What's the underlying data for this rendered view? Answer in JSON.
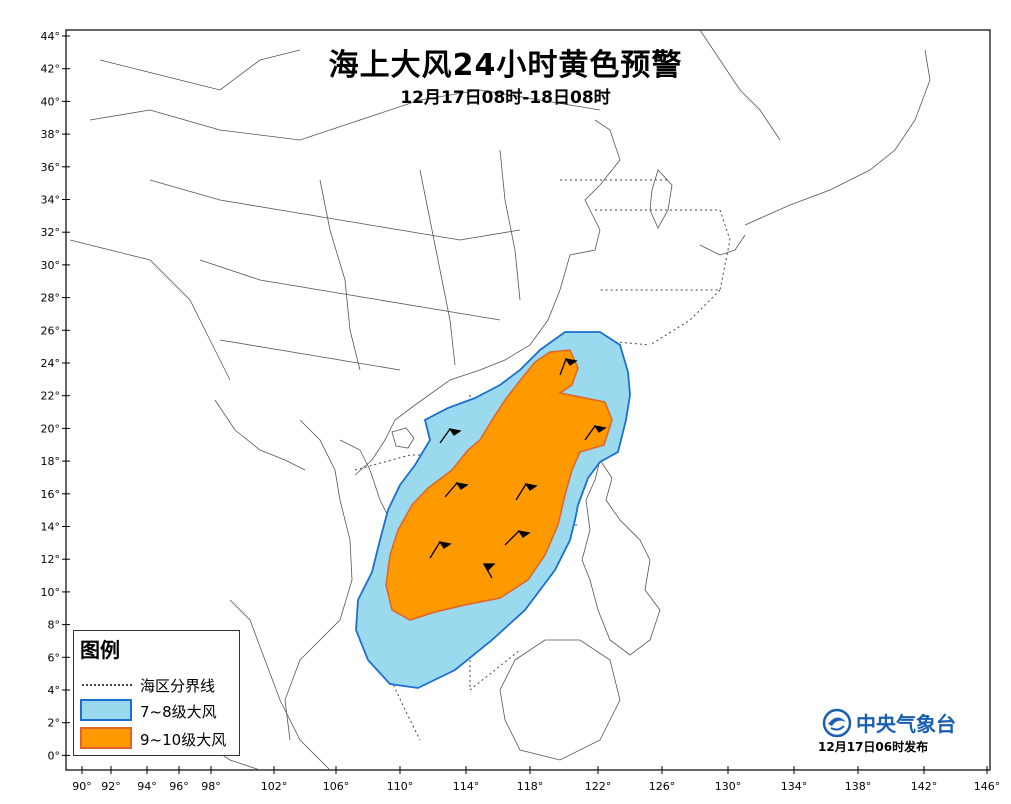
{
  "title": "海上大风24小时黄色预警",
  "subtitle": "12月17日08时-18日08时",
  "map": {
    "lon_range": [
      89,
      146
    ],
    "lat_range": [
      -1,
      44
    ],
    "lat_ticks": [
      "44°",
      "42°",
      "40°",
      "38°",
      "36°",
      "34°",
      "32°",
      "30°",
      "28°",
      "26°",
      "24°",
      "22°",
      "20°",
      "18°",
      "16°",
      "14°",
      "12°",
      "10°",
      "8°",
      "6°",
      "4°",
      "2°",
      "0°"
    ],
    "lon_ticks": [
      "90°",
      "92°",
      "94°",
      "96°",
      "98°",
      "102°",
      "106°",
      "110°",
      "114°",
      "118°",
      "122°",
      "126°",
      "130°",
      "134°",
      "138°",
      "142°",
      "146°"
    ]
  },
  "legend": {
    "title": "图例",
    "items": [
      {
        "label": "海区分界线",
        "kind": "dotted-line"
      },
      {
        "label": "7~8级大风",
        "color": "#9bd9ef",
        "border": "#1b6fd1"
      },
      {
        "label": "9~10级大风",
        "color": "#ff9900",
        "border": "#e0632a"
      }
    ]
  },
  "agency": "中央气象台",
  "issued": "12月17日06时发布",
  "colors": {
    "gale_7_8": "#9bd9ef",
    "gale_9_10": "#ff9900",
    "boundary": "#1b6fd1",
    "land_line": "#555555"
  }
}
